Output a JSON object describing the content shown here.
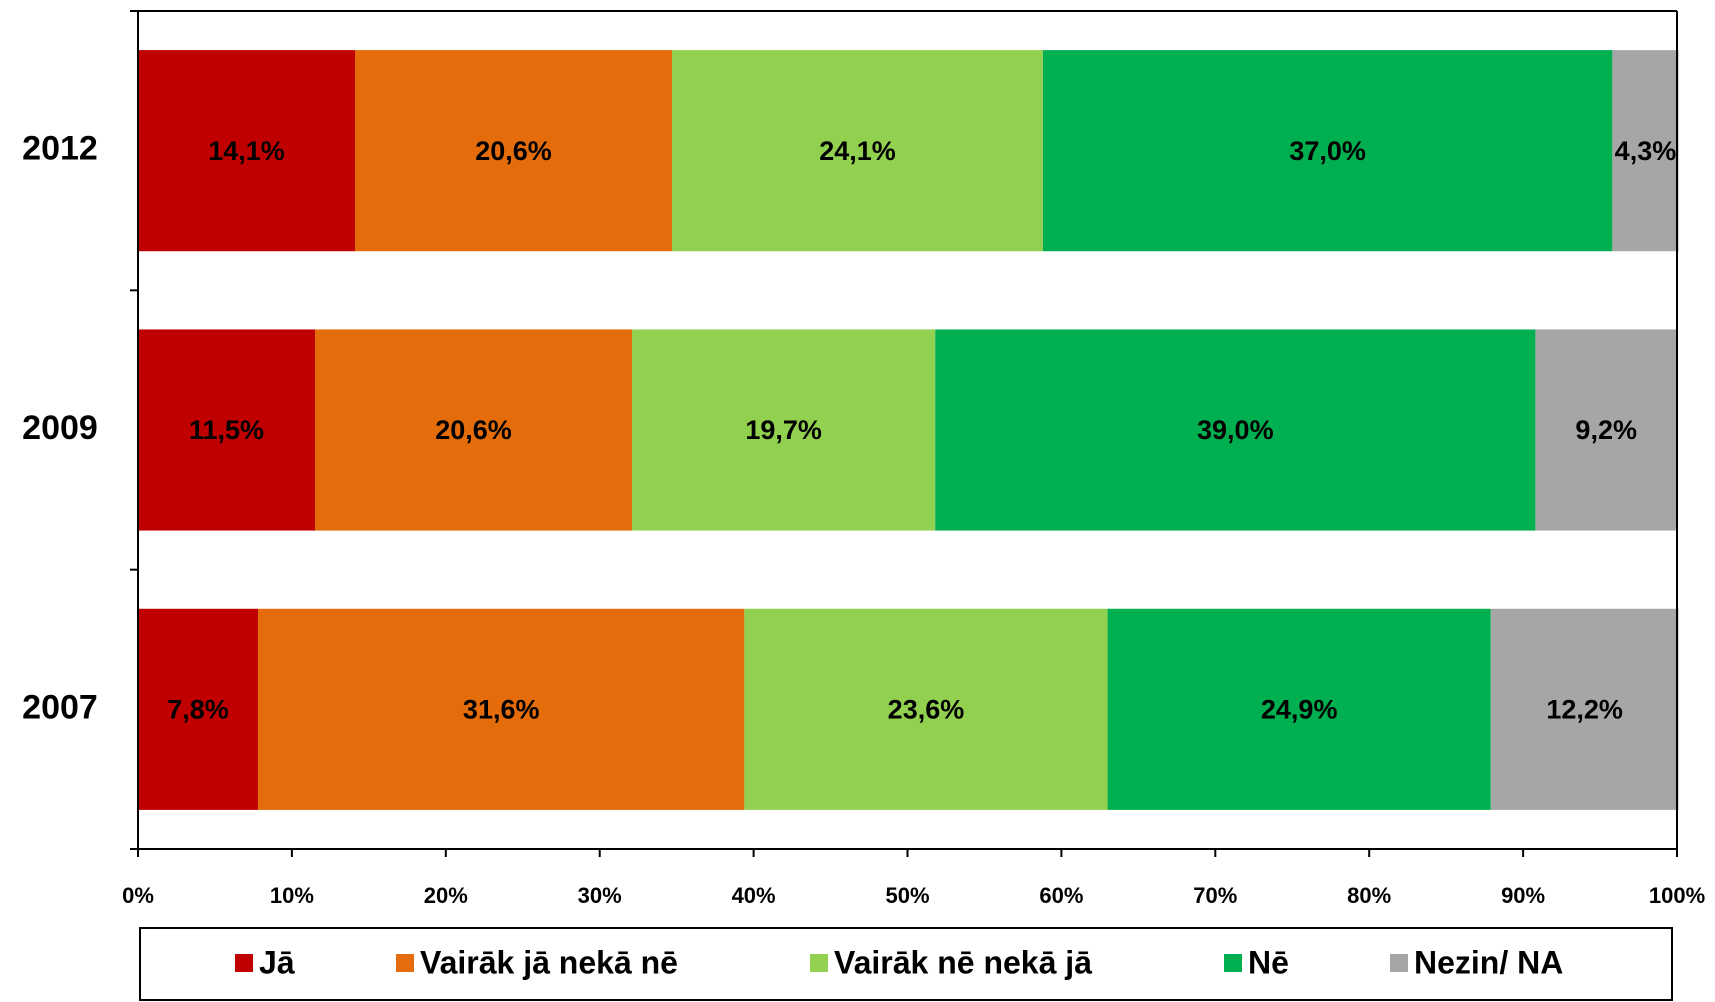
{
  "chart_data": {
    "type": "stacked_barh",
    "categories": [
      "2012",
      "2009",
      "2007"
    ],
    "series": [
      {
        "name": "Jā",
        "color": "#c00000",
        "values": [
          14.1,
          11.5,
          7.8
        ],
        "value_labels": [
          "14,1%",
          "11,5%",
          "7,8%"
        ]
      },
      {
        "name": "Vairāk jā nekā nē",
        "color": "#e46c0a",
        "values": [
          20.6,
          20.6,
          31.6
        ],
        "value_labels": [
          "20,6%",
          "20,6%",
          "31,6%"
        ]
      },
      {
        "name": "Vairāk nē nekā jā",
        "color": "#92d050",
        "values": [
          24.1,
          19.7,
          23.6
        ],
        "value_labels": [
          "24,1%",
          "19,7%",
          "23,6%"
        ]
      },
      {
        "name": "Nē",
        "color": "#00b050",
        "values": [
          37.0,
          39.0,
          24.9
        ],
        "value_labels": [
          "37,0%",
          "39,0%",
          "24,9%"
        ]
      },
      {
        "name": "Nezin/ NA",
        "color": "#a6a6a6",
        "values": [
          4.3,
          9.2,
          12.2
        ],
        "value_labels": [
          "4,3%",
          "9,2%",
          "12,2%"
        ]
      }
    ],
    "xlim": [
      0,
      100
    ],
    "xticks": [
      {
        "value": 0,
        "label": "0%"
      },
      {
        "value": 10,
        "label": "10%"
      },
      {
        "value": 20,
        "label": "20%"
      },
      {
        "value": 30,
        "label": "30%"
      },
      {
        "value": 40,
        "label": "40%"
      },
      {
        "value": 50,
        "label": "50%"
      },
      {
        "value": 60,
        "label": "60%"
      },
      {
        "value": 70,
        "label": "70%"
      },
      {
        "value": 80,
        "label": "80%"
      },
      {
        "value": 90,
        "label": "90%"
      },
      {
        "value": 100,
        "label": "100%"
      }
    ],
    "legend": "bottom"
  }
}
